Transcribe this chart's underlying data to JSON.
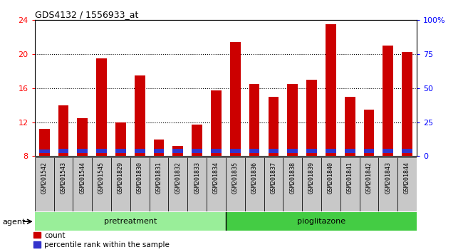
{
  "title": "GDS4132 / 1556933_at",
  "samples": [
    "GSM201542",
    "GSM201543",
    "GSM201544",
    "GSM201545",
    "GSM201829",
    "GSM201830",
    "GSM201831",
    "GSM201832",
    "GSM201833",
    "GSM201834",
    "GSM201835",
    "GSM201836",
    "GSM201837",
    "GSM201838",
    "GSM201839",
    "GSM201840",
    "GSM201841",
    "GSM201842",
    "GSM201843",
    "GSM201844"
  ],
  "count_values": [
    11.2,
    14.0,
    12.5,
    19.5,
    12.0,
    17.5,
    10.0,
    9.2,
    11.7,
    15.7,
    21.4,
    16.5,
    15.0,
    16.5,
    17.0,
    23.5,
    15.0,
    13.5,
    21.0,
    20.3
  ],
  "percentile_values": [
    0.4,
    0.5,
    0.5,
    0.5,
    0.5,
    0.5,
    0.5,
    0.5,
    0.5,
    0.5,
    0.5,
    0.5,
    0.5,
    0.5,
    0.5,
    0.5,
    0.5,
    0.5,
    0.5,
    0.5
  ],
  "bar_bottom": 8.0,
  "y_min": 8,
  "y_max": 24,
  "y_ticks_left": [
    8,
    12,
    16,
    20,
    24
  ],
  "y_ticks_right_pos": [
    8,
    12,
    16,
    20,
    24
  ],
  "y2_labels": [
    "0",
    "25",
    "50",
    "75",
    "100%"
  ],
  "count_color": "#cc0000",
  "percentile_color": "#3333cc",
  "bar_width": 0.55,
  "n_pretreatment": 10,
  "pretreatment_label": "pretreatment",
  "pioglitazone_label": "pioglitazone",
  "agent_label": "agent",
  "legend_count": "count",
  "legend_percentile": "percentile rank within the sample",
  "tick_bg_color": "#c8c8c8",
  "green_light": "#99ee99",
  "green_dark": "#44cc44"
}
